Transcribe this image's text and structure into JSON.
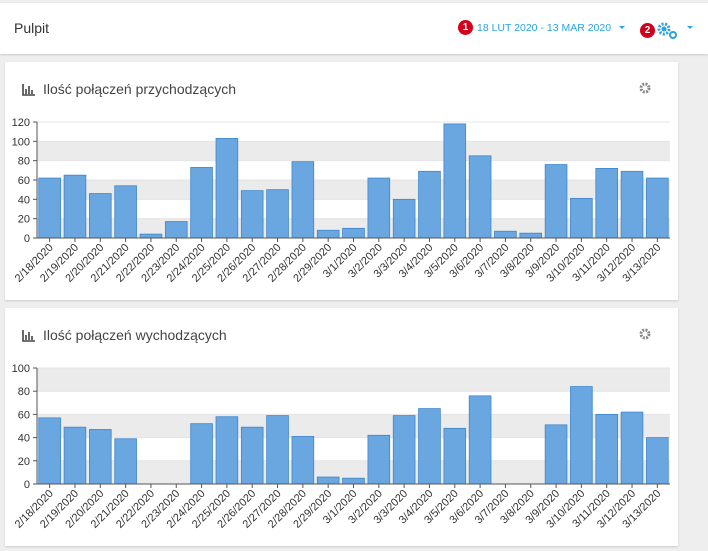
{
  "header": {
    "title": "Pulpit",
    "date_range": "18 LUT 2020 - 13 MAR 2020",
    "badges": [
      1,
      2
    ]
  },
  "chart_data": [
    {
      "type": "bar",
      "title": "Ilość połączeń przychodzących",
      "color": "#6aa7e0",
      "categories": [
        "2/18/2020",
        "2/19/2020",
        "2/20/2020",
        "2/21/2020",
        "2/22/2020",
        "2/23/2020",
        "2/24/2020",
        "2/25/2020",
        "2/26/2020",
        "2/27/2020",
        "2/28/2020",
        "2/29/2020",
        "3/1/2020",
        "3/2/2020",
        "3/3/2020",
        "3/4/2020",
        "3/5/2020",
        "3/6/2020",
        "3/7/2020",
        "3/8/2020",
        "3/9/2020",
        "3/10/2020",
        "3/11/2020",
        "3/12/2020",
        "3/13/2020"
      ],
      "values": [
        62,
        65,
        46,
        54,
        4,
        17,
        73,
        103,
        49,
        50,
        79,
        8,
        10,
        62,
        40,
        69,
        118,
        85,
        7,
        5,
        76,
        41,
        72,
        69,
        62
      ],
      "ylim": [
        0,
        120
      ],
      "yticks": [
        0,
        20,
        40,
        60,
        80,
        100,
        120
      ],
      "grid": true
    },
    {
      "type": "bar",
      "title": "Ilość połączeń wychodzących",
      "color": "#6aa7e0",
      "categories": [
        "2/18/2020",
        "2/19/2020",
        "2/20/2020",
        "2/21/2020",
        "2/22/2020",
        "2/23/2020",
        "2/24/2020",
        "2/25/2020",
        "2/26/2020",
        "2/27/2020",
        "2/28/2020",
        "2/29/2020",
        "3/1/2020",
        "3/2/2020",
        "3/3/2020",
        "3/4/2020",
        "3/5/2020",
        "3/6/2020",
        "3/7/2020",
        "3/8/2020",
        "3/9/2020",
        "3/10/2020",
        "3/11/2020",
        "3/12/2020",
        "3/13/2020"
      ],
      "values": [
        57,
        49,
        47,
        39,
        0,
        0,
        52,
        58,
        49,
        59,
        41,
        6,
        5,
        42,
        59,
        65,
        48,
        76,
        0,
        0,
        51,
        84,
        60,
        62,
        40
      ],
      "ylim": [
        0,
        100
      ],
      "yticks": [
        0,
        20,
        40,
        60,
        80,
        100
      ],
      "grid": true
    }
  ]
}
